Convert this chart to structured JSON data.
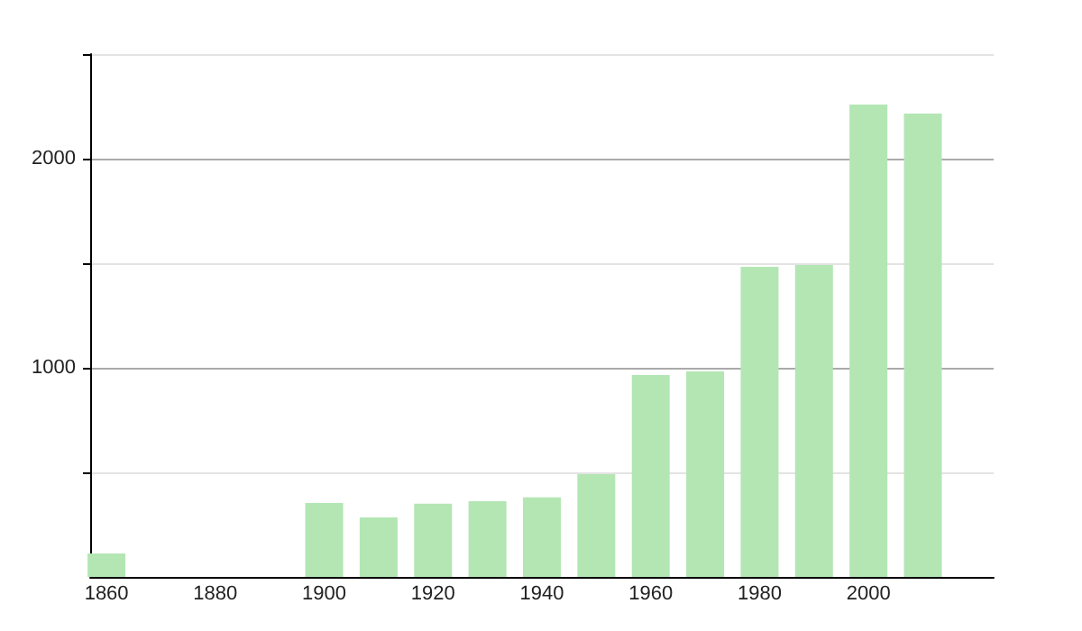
{
  "chart_data": {
    "type": "bar",
    "x": [
      1860,
      1900,
      1910,
      1920,
      1930,
      1940,
      1950,
      1960,
      1970,
      1980,
      1990,
      2000,
      2010
    ],
    "values": [
      112,
      353,
      284,
      350,
      362,
      380,
      491,
      966,
      983,
      1483,
      1491,
      2259,
      2216
    ],
    "color": "#b3e6b3",
    "xlim": [
      1857,
      2023
    ],
    "xticks": [
      1860,
      1880,
      1900,
      1920,
      1940,
      1960,
      1980,
      2000
    ],
    "ylim": [
      0,
      2500
    ],
    "yticks": [
      {
        "value": 500,
        "label": null
      },
      1000,
      {
        "value": 1500,
        "label": null
      },
      2000,
      {
        "value": 2500,
        "label": null
      }
    ],
    "grid": "y"
  }
}
